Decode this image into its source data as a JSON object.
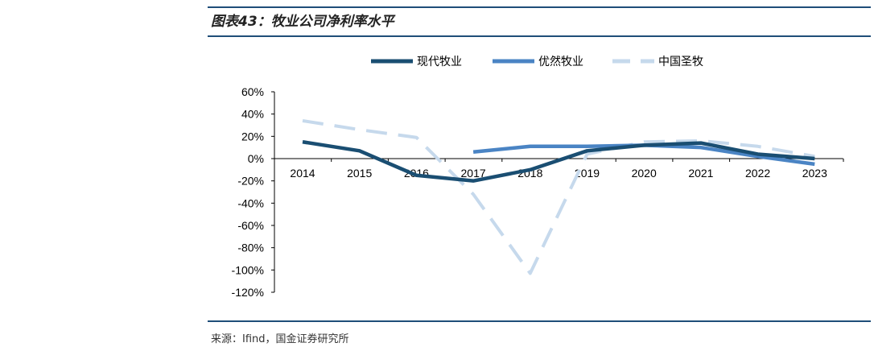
{
  "header": {
    "title": "图表43：牧业公司净利率水平"
  },
  "footer": {
    "source": "来源：Ifind，国金证券研究所"
  },
  "chart_data": {
    "type": "line",
    "title": "牧业公司净利率水平",
    "xlabel": "",
    "ylabel": "",
    "ylim": [
      -120,
      60
    ],
    "yticks": [
      "60%",
      "40%",
      "20%",
      "0%",
      "-20%",
      "-40%",
      "-60%",
      "-80%",
      "-100%",
      "-120%"
    ],
    "ytick_values": [
      60,
      40,
      20,
      0,
      -20,
      -40,
      -60,
      -80,
      -100,
      -120
    ],
    "categories": [
      "2014",
      "2015",
      "2016",
      "2017",
      "2018",
      "2019",
      "2020",
      "2021",
      "2022",
      "2023"
    ],
    "legend_position": "top",
    "series": [
      {
        "name": "现代牧业",
        "color": "#1a4e72",
        "style": "solid",
        "values": [
          15,
          7,
          -15,
          -20,
          -10,
          7,
          12,
          14,
          4,
          0
        ]
      },
      {
        "name": "优然牧业",
        "color": "#4a84c4",
        "style": "solid",
        "values": [
          null,
          null,
          null,
          6,
          11,
          11,
          12,
          10,
          2,
          -5
        ]
      },
      {
        "name": "中国圣牧",
        "color": "#c6d9ec",
        "style": "dashed",
        "values": [
          34,
          26,
          19,
          -32,
          -103,
          4,
          15,
          16,
          11,
          2
        ]
      }
    ]
  }
}
